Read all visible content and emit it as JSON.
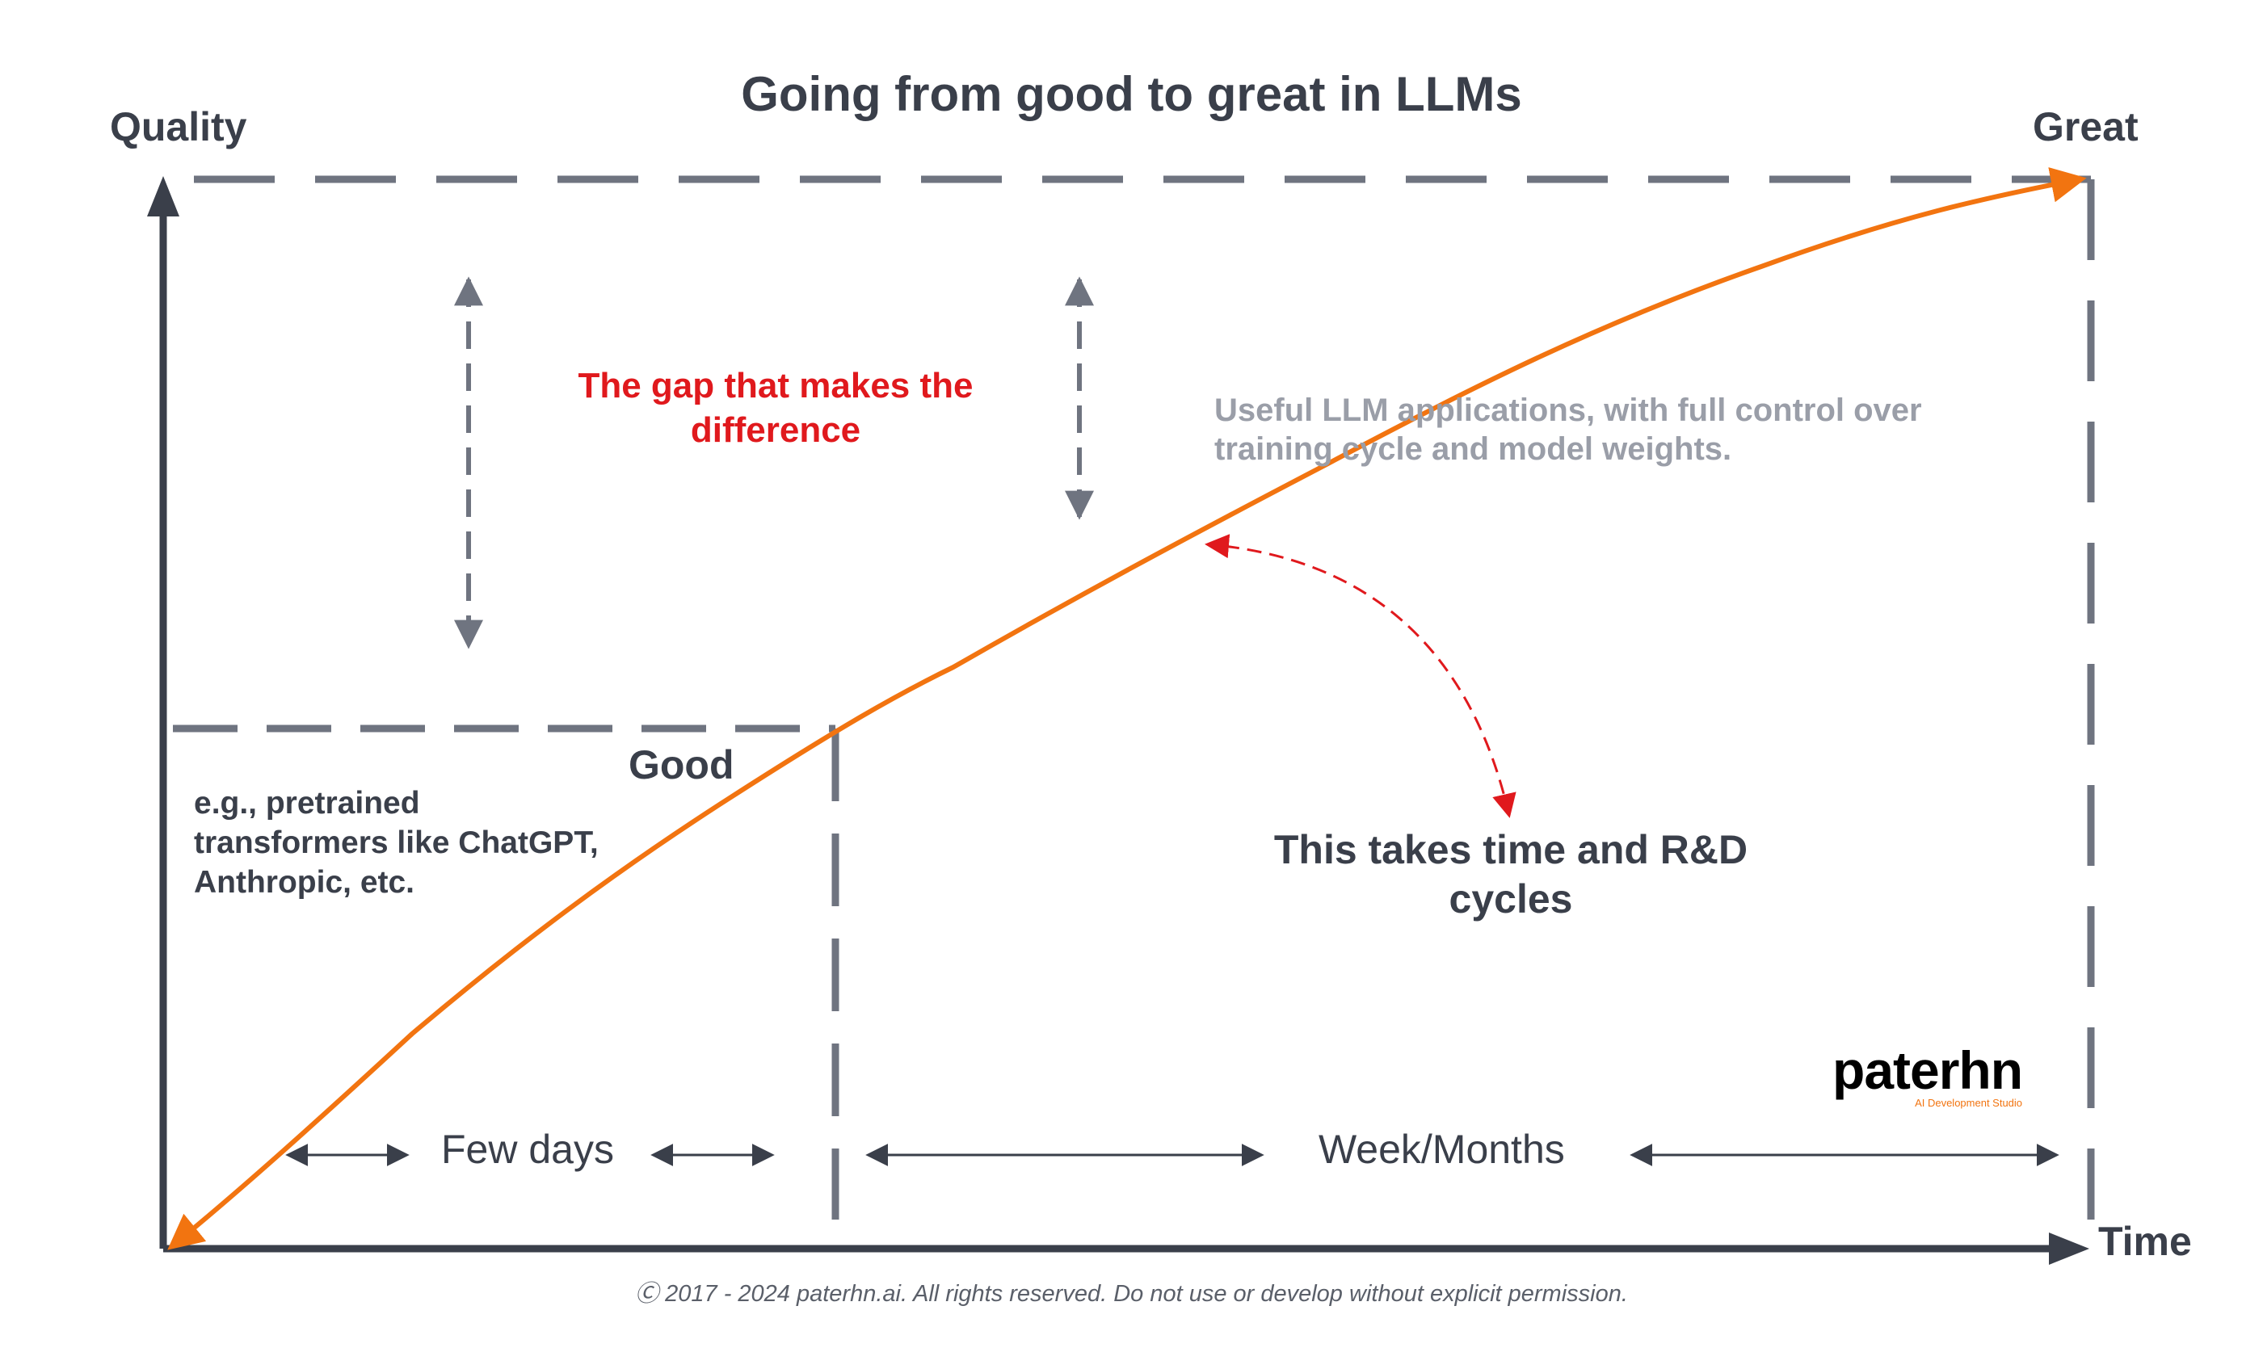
{
  "title": "Going from good to great in LLMs",
  "axes": {
    "y_label": "Quality",
    "x_label": "Time"
  },
  "levels": {
    "great": "Great",
    "good": "Good"
  },
  "annotations": {
    "gap": "The gap that makes the difference",
    "useful": "Useful LLM applications, with full control over training cycle and model weights.",
    "example": "e.g., pretrained transformers like ChatGPT, Anthropic, etc.",
    "rd": "This takes time and R&D cycles"
  },
  "durations": {
    "short": "Few days",
    "long": "Week/Months"
  },
  "copyright": "Ⓒ 2017 - 2024 paterhn.ai. All rights reserved. Do not use or develop without explicit permission.",
  "logo": {
    "name": "paterhn",
    "tagline": "AI Development Studio"
  },
  "colors": {
    "curve": "#f27410",
    "axis": "#3a3f4a",
    "dashed": "#6f7480",
    "accent_red": "#e0191d",
    "muted": "#9a9ea8"
  }
}
